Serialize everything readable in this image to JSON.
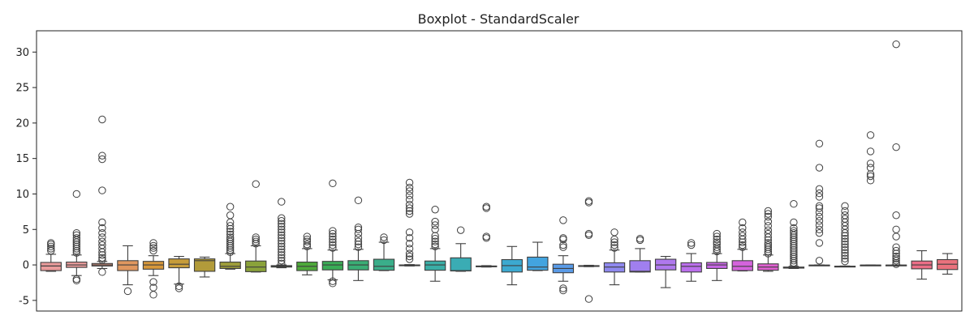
{
  "chart_data": {
    "type": "boxplot",
    "title": "Boxplot - StandardScaler",
    "xlabel": "",
    "ylabel": "",
    "ylim": [
      -6.5,
      33
    ],
    "yticks": [
      -5,
      0,
      5,
      10,
      15,
      20,
      25,
      30
    ],
    "x_tick_labels_visible": false,
    "grid": false,
    "legend": "none",
    "boxes": [
      {
        "color": "#ea9c9c",
        "whisker_low": -0.9,
        "q1": -0.8,
        "median": -0.15,
        "q3": 0.35,
        "whisker_high": 1.5,
        "outliers": [
          2.0,
          2.3,
          2.6,
          2.9,
          3.1
        ]
      },
      {
        "color": "#ea9c9c",
        "whisker_low": -1.5,
        "q1": -0.35,
        "median": 0.0,
        "q3": 0.4,
        "whisker_high": 1.4,
        "outliers": [
          -2.0,
          -2.2,
          1.7,
          2.0,
          2.3,
          2.6,
          2.9,
          3.2,
          3.5,
          3.8,
          4.2,
          4.5,
          10.0
        ]
      },
      {
        "color": "#e89b84",
        "whisker_low": -0.5,
        "q1": -0.15,
        "median": 0.0,
        "q3": 0.2,
        "whisker_high": 0.5,
        "outliers": [
          -1.0,
          0.7,
          1.0,
          1.4,
          1.8,
          2.3,
          2.8,
          3.3,
          3.9,
          4.5,
          5.2,
          6.0,
          10.5,
          14.9,
          15.4,
          20.5
        ]
      },
      {
        "color": "#e0975f",
        "whisker_low": -2.8,
        "q1": -0.8,
        "median": 0.0,
        "q3": 0.6,
        "whisker_high": 2.7,
        "outliers": [
          -3.7
        ]
      },
      {
        "color": "#d7983b",
        "whisker_low": -1.5,
        "q1": -0.6,
        "median": 0.0,
        "q3": 0.5,
        "whisker_high": 1.3,
        "outliers": [
          -2.4,
          -3.2,
          -4.2,
          2.0,
          2.4,
          2.7,
          3.1
        ]
      },
      {
        "color": "#c69c3a",
        "whisker_low": -2.7,
        "q1": -0.4,
        "median": 0.1,
        "q3": 0.85,
        "whisker_high": 1.2,
        "outliers": [
          -3.0,
          -3.3
        ]
      },
      {
        "color": "#b29b3a",
        "whisker_low": -1.7,
        "q1": -0.9,
        "median": 0.6,
        "q3": 0.85,
        "whisker_high": 1.1,
        "outliers": []
      },
      {
        "color": "#9f9e3a",
        "whisker_low": -0.6,
        "q1": -0.5,
        "median": -0.2,
        "q3": 0.4,
        "whisker_high": 1.6,
        "outliers": [
          1.8,
          2.1,
          2.4,
          2.7,
          3.0,
          3.3,
          3.6,
          3.9,
          4.3,
          4.7,
          5.1,
          5.5,
          6.0,
          7.0,
          8.2
        ]
      },
      {
        "color": "#8aa23a",
        "whisker_low": -1.0,
        "q1": -0.95,
        "median": -0.3,
        "q3": 0.55,
        "whisker_high": 2.7,
        "outliers": [
          3.0,
          3.3,
          3.6,
          3.9,
          11.4
        ]
      },
      {
        "color": "#6ca63a",
        "whisker_low": -0.4,
        "q1": -0.3,
        "median": -0.2,
        "q3": -0.1,
        "whisker_high": 0.0,
        "outliers": [
          0.2,
          0.6,
          1.0,
          1.4,
          1.8,
          2.2,
          2.6,
          3.0,
          3.4,
          3.8,
          4.2,
          4.6,
          5.0,
          5.4,
          5.8,
          6.2,
          6.6,
          8.9
        ]
      },
      {
        "color": "#4ea93a",
        "whisker_low": -1.4,
        "q1": -0.8,
        "median": -0.2,
        "q3": 0.4,
        "whisker_high": 2.3,
        "outliers": [
          2.6,
          2.9,
          3.3,
          3.6,
          4.0
        ]
      },
      {
        "color": "#3aac56",
        "whisker_low": -2.1,
        "q1": -0.7,
        "median": 0.0,
        "q3": 0.5,
        "whisker_high": 2.1,
        "outliers": [
          -2.3,
          -2.6,
          2.4,
          2.8,
          3.2,
          3.6,
          4.0,
          4.4,
          4.8,
          11.5
        ]
      },
      {
        "color": "#3aae75",
        "whisker_low": -2.2,
        "q1": -0.7,
        "median": 0.0,
        "q3": 0.6,
        "whisker_high": 2.2,
        "outliers": [
          2.5,
          2.9,
          3.3,
          3.8,
          4.4,
          5.0,
          5.3,
          9.1
        ]
      },
      {
        "color": "#3aae8a",
        "whisker_low": -0.8,
        "q1": -0.75,
        "median": -0.2,
        "q3": 0.8,
        "whisker_high": 3.2,
        "outliers": [
          3.5,
          3.9
        ]
      },
      {
        "color": "#3aae98",
        "whisker_low": -0.15,
        "q1": -0.1,
        "median": -0.05,
        "q3": 0.0,
        "whisker_high": 0.05,
        "outliers": [
          0.8,
          1.2,
          1.6,
          2.3,
          3.0,
          3.8,
          4.6,
          7.2,
          7.6,
          8.0,
          8.5,
          9.2,
          9.8,
          10.4,
          10.9,
          11.6
        ]
      },
      {
        "color": "#3aaea6",
        "whisker_low": -2.3,
        "q1": -0.75,
        "median": 0.0,
        "q3": 0.55,
        "whisker_high": 2.3,
        "outliers": [
          2.6,
          2.9,
          3.3,
          3.7,
          4.1,
          5.0,
          5.6,
          6.1,
          7.8
        ]
      },
      {
        "color": "#3aacb4",
        "whisker_low": -0.9,
        "q1": -0.85,
        "median": -0.8,
        "q3": 1.0,
        "whisker_high": 3.0,
        "outliers": [
          4.9
        ]
      },
      {
        "color": "#3bacc2",
        "whisker_low": -0.3,
        "q1": -0.25,
        "median": -0.2,
        "q3": -0.15,
        "whisker_high": -0.1,
        "outliers": [
          3.8,
          4.0,
          8.0,
          8.2
        ]
      },
      {
        "color": "#3ca9d0",
        "whisker_low": -2.8,
        "q1": -1.0,
        "median": -0.1,
        "q3": 0.75,
        "whisker_high": 2.6,
        "outliers": []
      },
      {
        "color": "#43a4df",
        "whisker_low": -0.8,
        "q1": -0.75,
        "median": -0.3,
        "q3": 1.1,
        "whisker_high": 3.2,
        "outliers": []
      },
      {
        "color": "#5a9be8",
        "whisker_low": -2.3,
        "q1": -1.1,
        "median": -0.5,
        "q3": 0.1,
        "whisker_high": 1.3,
        "outliers": [
          -3.3,
          -3.6,
          2.5,
          2.8,
          3.6,
          3.8,
          6.3
        ]
      },
      {
        "color": "#7a90ee",
        "whisker_low": -0.25,
        "q1": -0.2,
        "median": -0.15,
        "q3": -0.1,
        "whisker_high": -0.05,
        "outliers": [
          -4.8,
          4.2,
          4.4,
          8.8,
          9.0
        ]
      },
      {
        "color": "#8f89ef",
        "whisker_low": -2.8,
        "q1": -1.0,
        "median": -0.3,
        "q3": 0.3,
        "whisker_high": 2.1,
        "outliers": [
          2.4,
          2.8,
          3.2,
          3.6,
          4.6
        ]
      },
      {
        "color": "#a07fef",
        "whisker_low": -1.0,
        "q1": -1.0,
        "median": -0.9,
        "q3": 0.6,
        "whisker_high": 2.3,
        "outliers": [
          3.5,
          3.7
        ]
      },
      {
        "color": "#af78ee",
        "whisker_low": -3.2,
        "q1": -0.7,
        "median": 0.0,
        "q3": 0.8,
        "whisker_high": 1.2,
        "outliers": []
      },
      {
        "color": "#bb6fec",
        "whisker_low": -2.3,
        "q1": -1.0,
        "median": -0.2,
        "q3": 0.3,
        "whisker_high": 1.6,
        "outliers": [
          2.8,
          3.1
        ]
      },
      {
        "color": "#c867e6",
        "whisker_low": -2.2,
        "q1": -0.5,
        "median": 0.0,
        "q3": 0.35,
        "whisker_high": 1.6,
        "outliers": [
          1.9,
          2.2,
          2.5,
          2.9,
          3.2,
          3.6,
          4.0,
          4.4
        ]
      },
      {
        "color": "#d463dc",
        "whisker_low": -0.85,
        "q1": -0.8,
        "median": -0.2,
        "q3": 0.6,
        "whisker_high": 2.2,
        "outliers": [
          2.5,
          2.8,
          3.2,
          3.6,
          4.1,
          4.6,
          5.2,
          6.0
        ]
      },
      {
        "color": "#de5fd0",
        "whisker_low": -0.9,
        "q1": -0.75,
        "median": -0.3,
        "q3": 0.15,
        "whisker_high": 1.4,
        "outliers": [
          1.6,
          1.9,
          2.2,
          2.5,
          2.8,
          3.1,
          3.5,
          3.9,
          4.4,
          4.9,
          5.5,
          6.1,
          6.8,
          7.2,
          7.6
        ]
      },
      {
        "color": "#e55ec3",
        "whisker_low": -0.5,
        "q1": -0.45,
        "median": -0.4,
        "q3": -0.3,
        "whisker_high": -0.2,
        "outliers": [
          0.0,
          0.3,
          0.6,
          0.9,
          1.2,
          1.5,
          1.8,
          2.1,
          2.4,
          2.7,
          3.0,
          3.3,
          3.6,
          3.9,
          4.2,
          4.5,
          4.8,
          5.2,
          6.0,
          8.6
        ]
      },
      {
        "color": "#e860b6",
        "whisker_low": -0.1,
        "q1": -0.08,
        "median": -0.05,
        "q3": -0.02,
        "whisker_high": 0.0,
        "outliers": [
          0.6,
          3.1,
          4.5,
          5.0,
          5.6,
          6.2,
          6.8,
          7.4,
          8.0,
          8.3,
          9.6,
          10.1,
          10.7,
          13.7,
          17.1
        ]
      },
      {
        "color": "#ea63a9",
        "whisker_low": -0.25,
        "q1": -0.22,
        "median": -0.2,
        "q3": -0.18,
        "whisker_high": -0.15,
        "outliers": [
          0.5,
          0.9,
          1.3,
          1.7,
          2.1,
          2.5,
          2.9,
          3.3,
          3.7,
          4.1,
          4.5,
          5.0,
          5.5,
          6.0,
          6.5,
          7.0,
          7.6,
          8.3
        ]
      },
      {
        "color": "#eb669d",
        "whisker_low": -0.05,
        "q1": -0.04,
        "median": -0.03,
        "q3": -0.02,
        "whisker_high": -0.01,
        "outliers": [
          11.9,
          12.5,
          12.8,
          13.7,
          14.3,
          16.0,
          18.3
        ]
      },
      {
        "color": "#ec6a91",
        "whisker_low": -0.05,
        "q1": -0.04,
        "median": -0.03,
        "q3": -0.02,
        "whisker_high": 0.0,
        "outliers": [
          0.1,
          0.3,
          0.6,
          0.9,
          1.2,
          1.6,
          2.0,
          2.5,
          4.0,
          5.0,
          7.0,
          16.6,
          31.1
        ]
      },
      {
        "color": "#eb6e87",
        "whisker_low": -2.0,
        "q1": -0.55,
        "median": 0.0,
        "q3": 0.55,
        "whisker_high": 2.0,
        "outliers": []
      },
      {
        "color": "#ea727d",
        "whisker_low": -1.3,
        "q1": -0.65,
        "median": 0.1,
        "q3": 0.75,
        "whisker_high": 1.6,
        "outliers": []
      }
    ]
  }
}
